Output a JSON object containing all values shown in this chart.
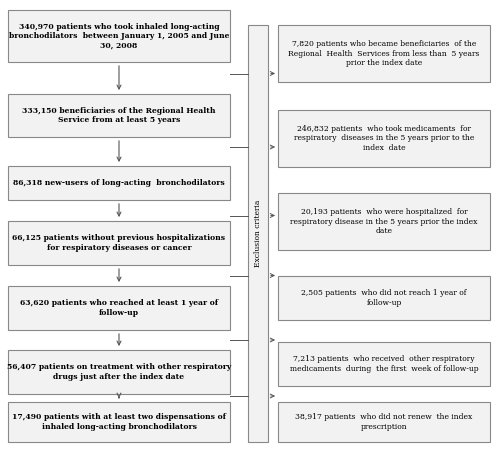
{
  "left_boxes": [
    {
      "text": "340,970 patients who took inhaled long-acting\nbronchodilators  between January 1, 2005 and June\n30, 2008"
    },
    {
      "text": "333,150 beneficiaries of the Regional Health\nService from at least 5 years"
    },
    {
      "text": "86,318 new-users of long-acting  bronchodilators"
    },
    {
      "text": "66,125 patients without previous hospitalizations\nfor respiratory diseases or cancer"
    },
    {
      "text": "63,620 patients who reached at least 1 year of\nfollow-up"
    },
    {
      "text": "56,407 patients on treatment with other respiratory\ndrugs just after the index date"
    },
    {
      "text": "17,490 patients with at least two dispensations of\ninhaled long-acting bronchodilators"
    }
  ],
  "right_boxes": [
    {
      "text": "7,820 patients who became beneficiaries  of the\nRegional  Health  Services from less than  5 years\nprior the index date"
    },
    {
      "text": "246,832 patients  who took medicaments  for\nrespiratory  diseases in the 5 years prior to the\nindex  date"
    },
    {
      "text": "20,193 patients  who were hospitalized  for\nrespiratory disease in the 5 years prior the index\ndate"
    },
    {
      "text": "2,505 patients  who did not reach 1 year of\nfollow-up"
    },
    {
      "text": "7,213 patients  who received  other respiratory\nmedicaments  during  the first  week of follow-up"
    },
    {
      "text": "38,917 patients  who did not renew  the index\nprescription"
    }
  ],
  "exclusion_label": "Exclusion criteria",
  "box_facecolor": "#f2f2f2",
  "box_edgecolor": "#888888",
  "line_color": "#555555",
  "text_color": "#000000",
  "bg_color": "#ffffff"
}
